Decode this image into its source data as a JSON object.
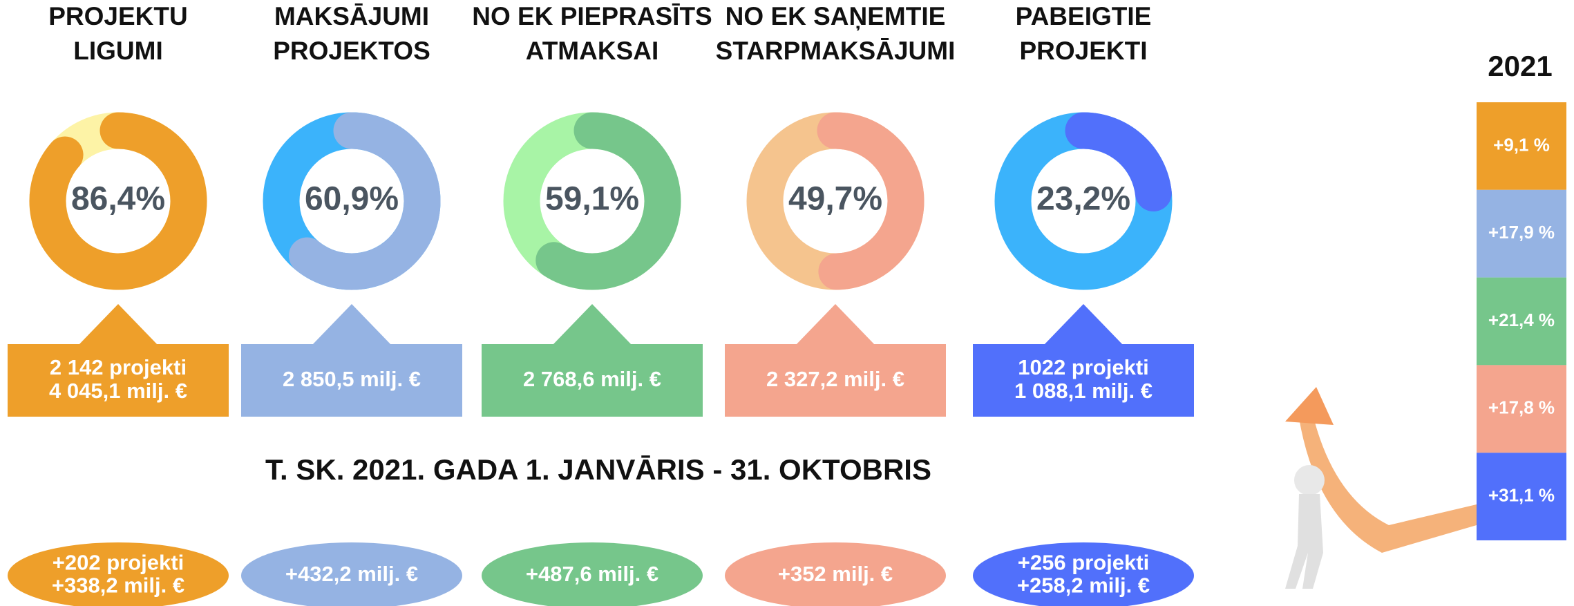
{
  "cards": [
    {
      "title": [
        "PROJEKTU",
        "LIGUMI"
      ],
      "percent": 86.4,
      "percent_label": "86,4%",
      "color": "#ee9f2a",
      "track_color": "#fdf3a6",
      "details": [
        "2 142 projekti",
        "4 045,1 milj. €"
      ],
      "change": [
        "+202 projekti",
        "+338,2 milj. €"
      ]
    },
    {
      "title": [
        "MAKSĀJUMI",
        "PROJEKTOS"
      ],
      "percent": 60.9,
      "percent_label": "60,9%",
      "color": "#95b3e3",
      "track_color": "#3bb3fb",
      "details": [
        "2 850,5 milj. €"
      ],
      "change": [
        "+432,2 milj. €"
      ]
    },
    {
      "title": [
        "NO EK PIEPRASĪTS",
        "ATMAKSAI"
      ],
      "percent": 59.1,
      "percent_label": "59,1%",
      "color": "#76c68b",
      "track_color": "#a8f4a6",
      "details": [
        "2 768,6 milj. €"
      ],
      "change": [
        "+487,6 milj. €"
      ]
    },
    {
      "title": [
        "NO EK SAŅEMTIE",
        "STARPMAKSĀJUMI"
      ],
      "percent": 49.7,
      "percent_label": "49,7%",
      "color": "#f4a58e",
      "track_color": "#f5c48e",
      "details": [
        "2 327,2 milj. €"
      ],
      "change": [
        "+352 milj. €"
      ]
    },
    {
      "title": [
        "PABEIGTIE",
        "PROJEKTI"
      ],
      "percent": 23.2,
      "percent_label": "23,2%",
      "color": "#5170fb",
      "track_color": "#3bb3fb",
      "details": [
        "1022 projekti",
        "1 088,1 milj. €"
      ],
      "change": [
        "+256 projekti",
        "+258,2 milj. €"
      ]
    }
  ],
  "period_heading": "T. SK. 2021. GADA 1. JANVĀRIS - 31. OKTOBRIS",
  "year": "2021",
  "year_changes": [
    {
      "label": "+9,1 %",
      "color": "#ee9f2a"
    },
    {
      "label": "+17,9 %",
      "color": "#95b3e3"
    },
    {
      "label": "+21,4 %",
      "color": "#76c68b"
    },
    {
      "label": "+17,8 %",
      "color": "#f4a58e"
    },
    {
      "label": "+31,1 %",
      "color": "#5170fb"
    }
  ]
}
